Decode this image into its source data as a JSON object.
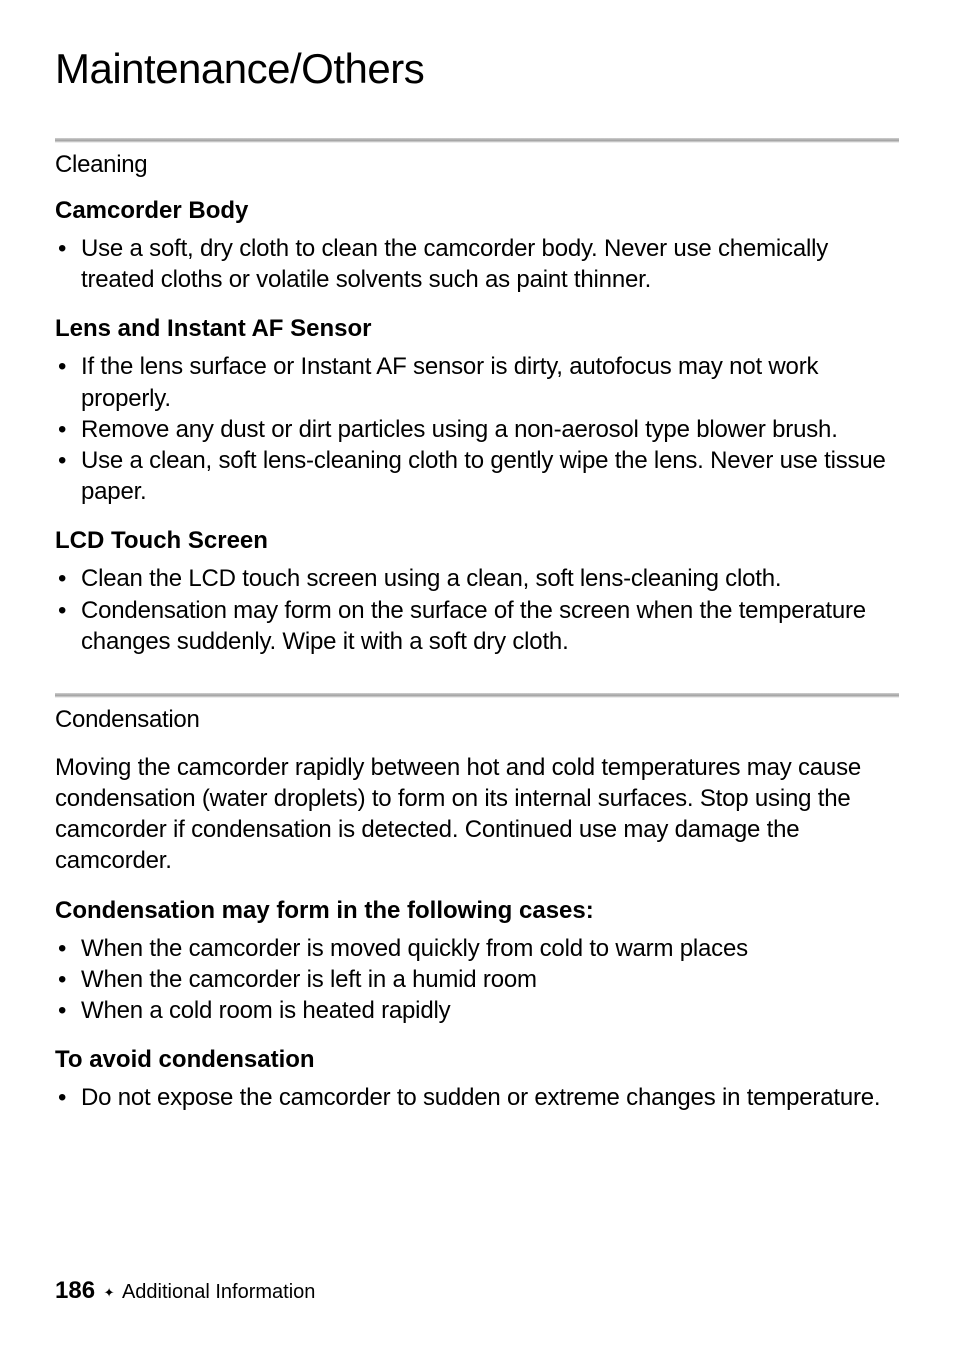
{
  "chapter_title": "Maintenance/Others",
  "sections": {
    "cleaning": {
      "title": "Cleaning",
      "subsections": {
        "camcorder_body": {
          "title": "Camcorder Body",
          "items": [
            "Use a soft, dry cloth to clean the camcorder body. Never use chemically treated cloths or volatile solvents such as paint thinner."
          ]
        },
        "lens_af": {
          "title": "Lens and Instant AF Sensor",
          "items": [
            "If the lens surface or Instant AF sensor is dirty, autofocus may not work properly.",
            "Remove any dust or dirt particles using a non-aerosol type blower brush.",
            "Use a clean, soft lens-cleaning cloth to gently wipe the lens. Never use tissue paper."
          ]
        },
        "lcd": {
          "title": "LCD Touch Screen",
          "items": [
            "Clean the LCD touch screen using a clean, soft lens-cleaning cloth.",
            "Condensation may form on the surface of the screen when the temperature changes suddenly. Wipe it with a soft dry cloth."
          ]
        }
      }
    },
    "condensation": {
      "title": "Condensation",
      "intro": "Moving the camcorder rapidly between hot and cold temperatures may cause condensation (water droplets) to form on its internal surfaces. Stop using the camcorder if condensation is detected. Continued use may damage the camcorder.",
      "subsections": {
        "may_form": {
          "title": "Condensation may form in the following cases:",
          "items": [
            "When the camcorder is moved quickly from cold to warm places",
            "When the camcorder is left in a humid room",
            "When a cold room is heated rapidly"
          ]
        },
        "avoid": {
          "title": "To avoid condensation",
          "items": [
            "Do not expose the camcorder to sudden or extreme changes in temperature."
          ]
        }
      }
    }
  },
  "footer": {
    "page_number": "186",
    "section_label": "Additional Information"
  },
  "colors": {
    "text": "#000000",
    "background": "#ffffff",
    "divider_dark": "#a0a0a0",
    "divider_light": "#d0d0d0"
  }
}
